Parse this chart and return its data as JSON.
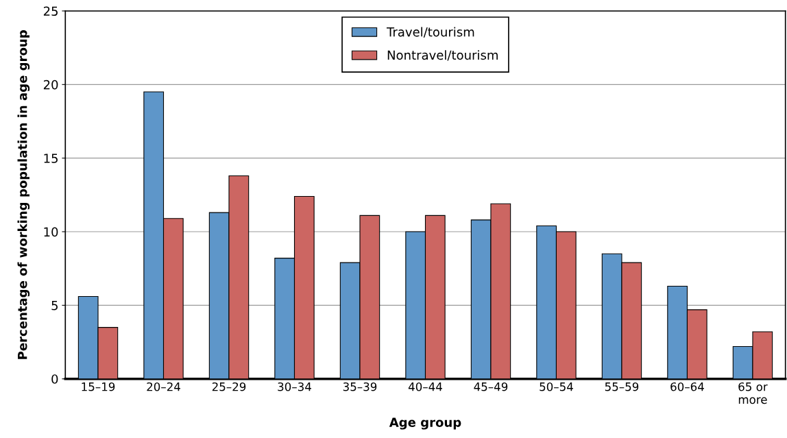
{
  "chart_data": {
    "type": "bar",
    "xlabel": "Age group",
    "ylabel": "Percentage of working population in age group",
    "categories": [
      "15–19",
      "20–24",
      "25–29",
      "30–34",
      "35–39",
      "40–44",
      "45–49",
      "50–54",
      "55–59",
      "60–64",
      "65 or\nmore"
    ],
    "series": [
      {
        "name": "Travel/tourism",
        "color": "#5e96c9",
        "values": [
          5.6,
          19.5,
          11.3,
          8.2,
          7.9,
          10.0,
          10.8,
          10.4,
          8.5,
          6.3,
          2.2
        ]
      },
      {
        "name": "Nontravel/tourism",
        "color": "#cc6662",
        "values": [
          3.5,
          10.9,
          13.8,
          12.4,
          11.1,
          11.1,
          11.9,
          10.0,
          7.9,
          4.7,
          3.2
        ]
      }
    ],
    "ylim": [
      0,
      25
    ],
    "yticks": [
      0,
      5,
      10,
      15,
      20,
      25
    ],
    "grid": "y",
    "legend": "top"
  }
}
